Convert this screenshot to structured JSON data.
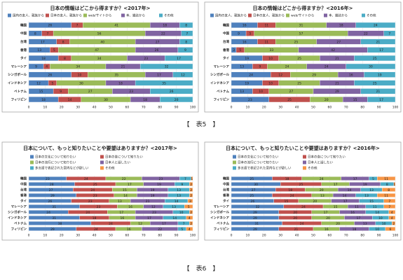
{
  "captions": [
    "【　表5　】",
    "【　表6　】"
  ],
  "chart_data": [
    {
      "type": "stacked-bar-horizontal",
      "title": "日本の情報はどこから得ますか？<2017年>",
      "categories": [
        "韓国",
        "中国",
        "台湾",
        "香港",
        "タイ",
        "マレーシア",
        "シンガポール",
        "インドネシア",
        "ベトナム",
        "フィリピン"
      ],
      "series": [
        {
          "name": "国内の友人、親族から",
          "color": "#4f81bd",
          "values": [
            26,
            8,
            17,
            13,
            18,
            9,
            26,
            12,
            15,
            18
          ]
        },
        {
          "name": "日本の友人、親族から",
          "color": "#c0504d",
          "values": [
            7,
            7,
            8,
            5,
            8,
            4,
            10,
            5,
            9,
            14
          ]
        },
        {
          "name": "web/サイトから",
          "color": "#9bbb59",
          "values": [
            41,
            56,
            40,
            47,
            34,
            34,
            35,
            30,
            27,
            30
          ]
        },
        {
          "name": "本、雑誌から",
          "color": "#8064a2",
          "values": [
            18,
            22,
            27,
            26,
            23,
            21,
            17,
            18,
            23,
            18
          ]
        },
        {
          "name": "その他",
          "color": "#4bacc6",
          "values": [
            8,
            7,
            8,
            9,
            17,
            32,
            12,
            35,
            26,
            20
          ]
        }
      ],
      "xlim": [
        0,
        100
      ],
      "xticks": [
        0,
        10,
        20,
        30,
        40,
        50,
        60,
        70,
        80,
        90,
        100
      ]
    },
    {
      "type": "stacked-bar-horizontal",
      "title": "日本の情報はどこから得ますか？<2016年>",
      "categories": [
        "韓国",
        "中国",
        "台湾",
        "香港",
        "タイ",
        "マレーシア",
        "シンガポール",
        "インドネシア",
        "ベトナム",
        "フィリピン"
      ],
      "series": [
        {
          "name": "国内の友人、親族から",
          "color": "#4f81bd",
          "values": [
            16,
            9,
            16,
            3,
            19,
            13,
            24,
            19,
            13,
            23
          ]
        },
        {
          "name": "日本の友人、親族から",
          "color": "#c0504d",
          "values": [
            11,
            5,
            11,
            5,
            10,
            9,
            12,
            10,
            10,
            25
          ]
        },
        {
          "name": "web/サイトから",
          "color": "#9bbb59",
          "values": [
            31,
            57,
            25,
            33,
            25,
            24,
            29,
            25,
            27,
            20
          ]
        },
        {
          "name": "本、雑誌から",
          "color": "#8064a2",
          "values": [
            18,
            22,
            27,
            42,
            21,
            24,
            16,
            21,
            29,
            15
          ]
        },
        {
          "name": "その他",
          "color": "#4bacc6",
          "values": [
            24,
            7,
            21,
            17,
            25,
            30,
            19,
            25,
            21,
            17
          ]
        }
      ],
      "xlim": [
        0,
        100
      ],
      "xticks": [
        0,
        10,
        20,
        30,
        40,
        50,
        60,
        70,
        80,
        90,
        100
      ]
    },
    {
      "type": "stacked-bar-horizontal",
      "title": "日本について、もっと知りたいことや要望はありますか？<2017年>",
      "categories": [
        "韓国",
        "中国",
        "台湾",
        "香港",
        "タイ",
        "マレーシア",
        "シンガポール",
        "インドネシア",
        "ベトナム",
        "フィリピン"
      ],
      "series": [
        {
          "name": "日本の文化について知りたい",
          "color": "#4f81bd",
          "values": [
            23,
            28,
            27,
            29,
            26,
            31,
            24,
            31,
            38,
            29
          ]
        },
        {
          "name": "日本の食について知りたい",
          "color": "#c0504d",
          "values": [
            24,
            25,
            24,
            23,
            23,
            23,
            24,
            18,
            24,
            24
          ]
        },
        {
          "name": "日本の流行について知りたい",
          "color": "#9bbb59",
          "values": [
            22,
            17,
            15,
            14,
            13,
            16,
            17,
            16,
            12,
            16
          ]
        },
        {
          "name": "日本人と話したい",
          "color": "#8064a2",
          "values": [
            23,
            19,
            19,
            19,
            21,
            12,
            23,
            17,
            17,
            22
          ]
        },
        {
          "name": "多言語で表記された案内などが欲しい",
          "color": "#4bacc6",
          "values": [
            7,
            9,
            13,
            13,
            14,
            13,
            10,
            14,
            7,
            5
          ]
        },
        {
          "name": "その他",
          "color": "#f79646",
          "values": [
            1,
            2,
            2,
            2,
            3,
            5,
            2,
            4,
            2,
            4
          ]
        }
      ],
      "xlim": [
        0,
        100
      ],
      "xticks": [
        0,
        10,
        20,
        30,
        40,
        50,
        60,
        70,
        80,
        90,
        100
      ]
    },
    {
      "type": "stacked-bar-horizontal",
      "title": "日本について、もっと知りたいことや要望はありますか？<2016年>",
      "categories": [
        "韓国",
        "中国",
        "台湾",
        "香港",
        "タイ",
        "マレーシア",
        "シンガポール",
        "インドネシア",
        "ベトナム",
        "フィリピン"
      ],
      "series": [
        {
          "name": "日本の文化について知りたい",
          "color": "#4f81bd",
          "values": [
            25,
            30,
            27,
            25,
            26,
            32,
            29,
            29,
            31,
            29
          ]
        },
        {
          "name": "日本の食について知りたい",
          "color": "#c0504d",
          "values": [
            18,
            25,
            18,
            24,
            15,
            24,
            20,
            20,
            24,
            21
          ]
        },
        {
          "name": "日本の流行について知りたい",
          "color": "#9bbb59",
          "values": [
            24,
            17,
            20,
            13,
            20,
            15,
            17,
            20,
            20,
            16
          ]
        },
        {
          "name": "日本人と話したい",
          "color": "#8064a2",
          "values": [
            17,
            19,
            14,
            14,
            17,
            11,
            16,
            17,
            13,
            18
          ]
        },
        {
          "name": "多言語で表記された案内などが欲しい",
          "color": "#4bacc6",
          "values": [
            5,
            8,
            13,
            13,
            15,
            11,
            14,
            10,
            10,
            10
          ]
        },
        {
          "name": "その他",
          "color": "#f79646",
          "values": [
            11,
            1,
            8,
            11,
            7,
            7,
            4,
            4,
            2,
            6
          ]
        }
      ],
      "xlim": [
        0,
        100
      ],
      "xticks": [
        0,
        10,
        20,
        30,
        40,
        50,
        60,
        70,
        80,
        90,
        100
      ]
    }
  ]
}
